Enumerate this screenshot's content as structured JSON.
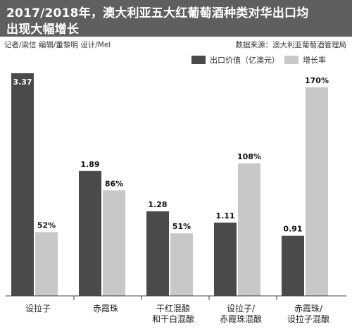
{
  "title": {
    "line1": "2017/2018年，澳大利亚五大红葡萄酒种类对华出口均",
    "line2": "出现大幅增长"
  },
  "credits": "记者/梁信  编辑/董黎明 设计/Mel",
  "source": "数据来源：澳大利亚葡萄酒管理局",
  "colors": {
    "header_bg": "#5f5f5f",
    "export_value": "#4a4a4a",
    "growth_rate": "#c8c8c8"
  },
  "chart_data": {
    "type": "bar",
    "categories": [
      [
        "设拉子"
      ],
      [
        "赤霞珠"
      ],
      [
        "干红混酿",
        "和干白混酿"
      ],
      [
        "设拉子/",
        "赤霞珠混酿"
      ],
      [
        "赤霞珠/",
        "设拉子混酿"
      ]
    ],
    "series": [
      {
        "name": "出口价值（亿澳元）",
        "values": [
          3.37,
          1.89,
          1.28,
          1.11,
          0.91
        ],
        "labels": [
          "3.37",
          "1.89",
          "1.28",
          "1.11",
          "0.91"
        ]
      },
      {
        "name": "增长率",
        "values": [
          52,
          86,
          51,
          108,
          170
        ],
        "labels": [
          "52%",
          "86%",
          "51%",
          "108%",
          "170%"
        ]
      }
    ],
    "legend": "top-right"
  }
}
